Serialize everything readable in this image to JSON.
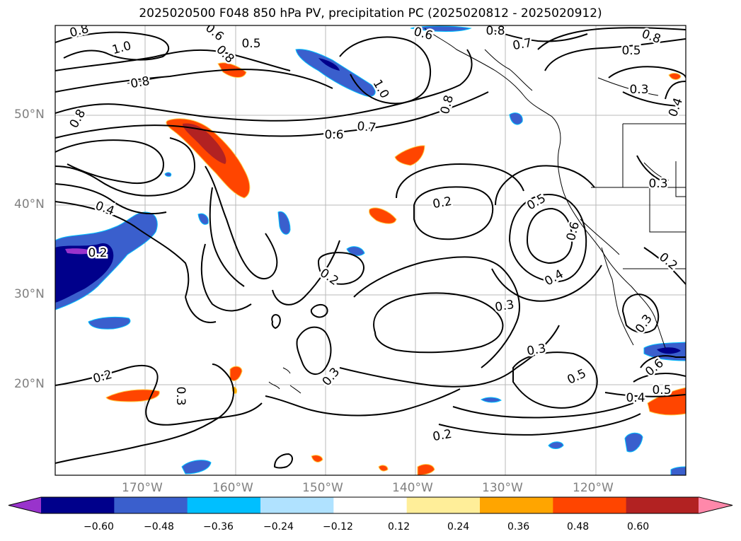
{
  "title": "2025020500 F048 850 hPa PV, precipitation PC (2025020812 - 2025020912)",
  "lat_labels": [
    "50°N",
    "40°N",
    "30°N",
    "20°N"
  ],
  "lon_labels": [
    "170°W",
    "160°W",
    "150°W",
    "140°W",
    "130°W",
    "120°W"
  ],
  "colorbar": {
    "ticks": [
      "−0.60",
      "−0.48",
      "−0.36",
      "−0.24",
      "−0.12",
      "0.12",
      "0.24",
      "0.36",
      "0.48",
      "0.60"
    ],
    "colors": [
      "#9933cc",
      "#00008b",
      "#3a5fcd",
      "#00bfff",
      "#b0e2ff",
      "#ffffff",
      "#ffee99",
      "#ffa500",
      "#ff4500",
      "#b22222",
      "#ff88aa"
    ]
  },
  "contour_labels": [
    {
      "text": "0.8"
    },
    {
      "text": "1.0"
    },
    {
      "text": "0.6"
    },
    {
      "text": "0.5"
    },
    {
      "text": "0.8"
    },
    {
      "text": "0.6"
    },
    {
      "text": "0.8"
    },
    {
      "text": "0.7"
    },
    {
      "text": "0.8"
    },
    {
      "text": "0.5"
    },
    {
      "text": "1.0"
    },
    {
      "text": "0.8"
    },
    {
      "text": "0.3"
    },
    {
      "text": "0.4"
    },
    {
      "text": "0.8"
    },
    {
      "text": "0.7"
    },
    {
      "text": "0.6"
    },
    {
      "text": "0.8"
    },
    {
      "text": "0.4"
    },
    {
      "text": "0.2"
    },
    {
      "text": "0.2"
    },
    {
      "text": "0.5"
    },
    {
      "text": "0.6"
    },
    {
      "text": "0.3"
    },
    {
      "text": "0.4"
    },
    {
      "text": "0.3"
    },
    {
      "text": "0.2"
    },
    {
      "text": "0.3"
    },
    {
      "text": "0.3"
    },
    {
      "text": "0.3"
    },
    {
      "text": "0.5"
    },
    {
      "text": "0.6"
    },
    {
      "text": "0.2"
    },
    {
      "text": "0.3"
    },
    {
      "text": "0.2"
    },
    {
      "text": "0.4"
    },
    {
      "text": "0.5"
    },
    {
      "text": "0.2"
    }
  ]
}
